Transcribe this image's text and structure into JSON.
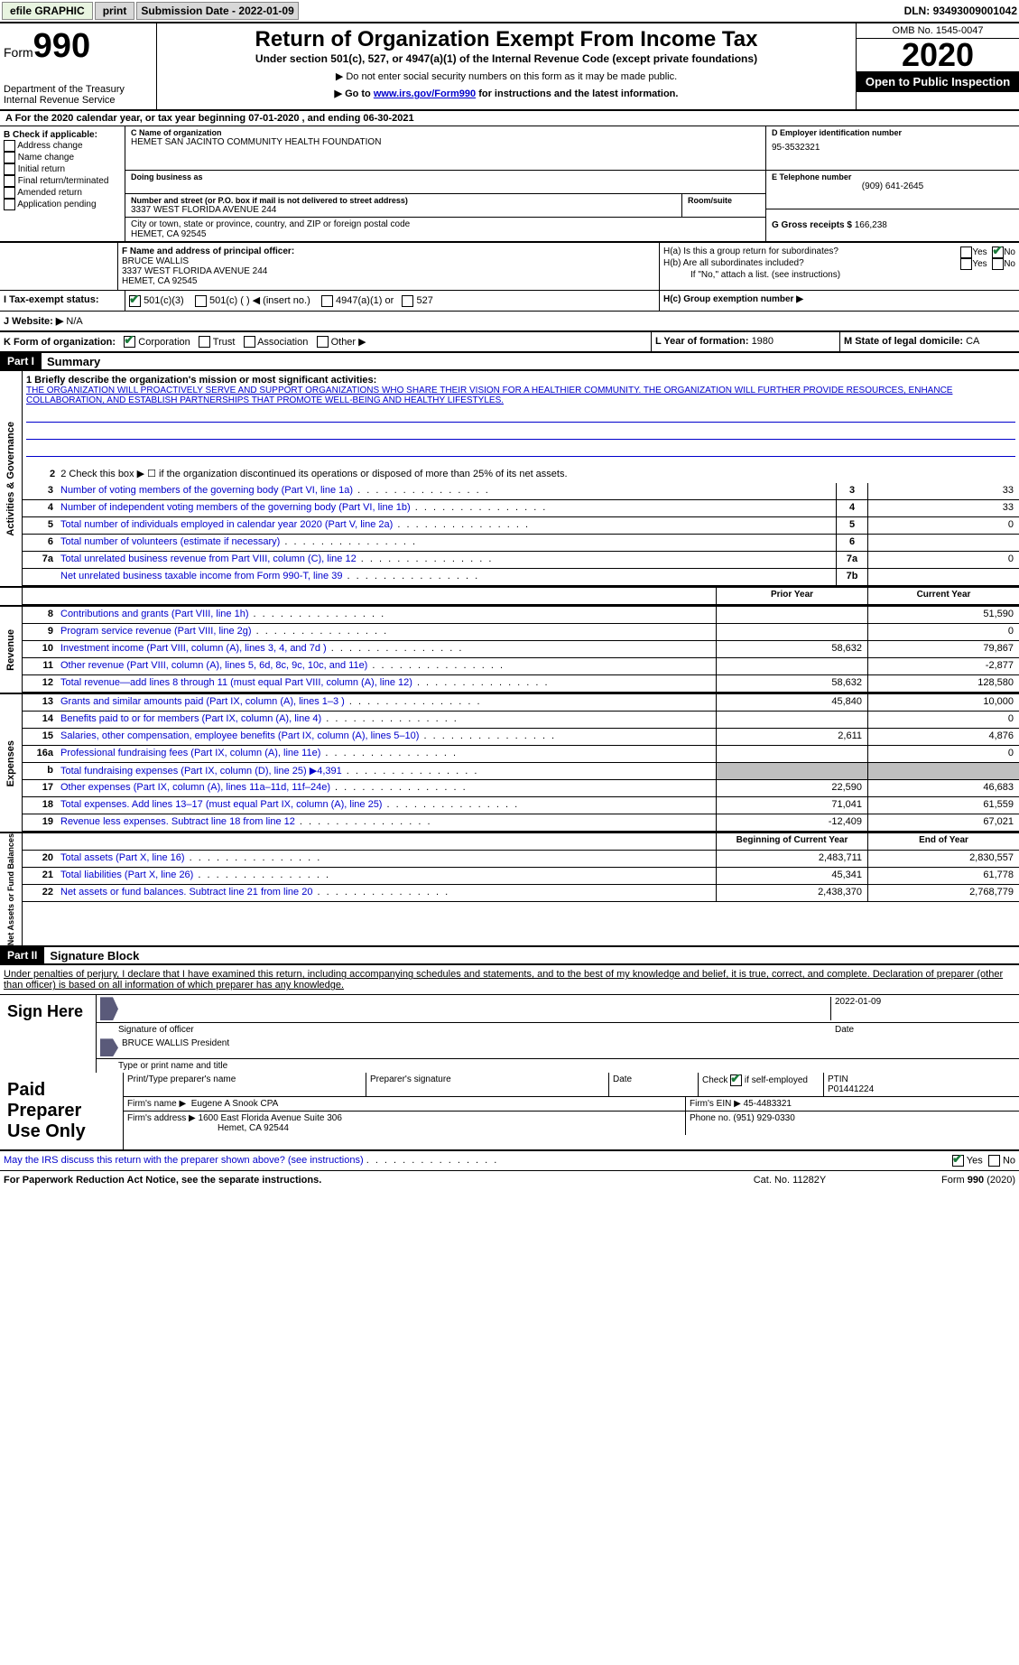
{
  "topbar": {
    "efile": "efile GRAPHIC",
    "print": "print",
    "sub_label": "Submission Date - ",
    "sub_date": "2022-01-09",
    "dln_label": "DLN: ",
    "dln": "93493009001042"
  },
  "header": {
    "form_word": "Form",
    "form_num": "990",
    "dept1": "Department of the Treasury",
    "dept2": "Internal Revenue Service",
    "title": "Return of Organization Exempt From Income Tax",
    "subtitle": "Under section 501(c), 527, or 4947(a)(1) of the Internal Revenue Code (except private foundations)",
    "note1": "▶ Do not enter social security numbers on this form as it may be made public.",
    "note2_pre": "▶ Go to ",
    "note2_link": "www.irs.gov/Form990",
    "note2_post": " for instructions and the latest information.",
    "omb": "OMB No. 1545-0047",
    "year": "2020",
    "inspection": "Open to Public Inspection"
  },
  "section_a": {
    "text": "A For the 2020 calendar year, or tax year beginning 07-01-2020    , and ending 06-30-2021"
  },
  "box_b": {
    "title": "B Check if applicable:",
    "items": [
      "Address change",
      "Name change",
      "Initial return",
      "Final return/terminated",
      "Amended return",
      "Application pending"
    ]
  },
  "box_c": {
    "name_label": "C Name of organization",
    "name": "HEMET SAN JACINTO COMMUNITY HEALTH FOUNDATION",
    "dba_label": "Doing business as",
    "addr_label": "Number and street (or P.O. box if mail is not delivered to street address)",
    "addr": "3337 WEST FLORIDA AVENUE 244",
    "room_label": "Room/suite",
    "city_label": "City or town, state or province, country, and ZIP or foreign postal code",
    "city": "HEMET, CA  92545"
  },
  "box_d": {
    "label": "D Employer identification number",
    "value": "95-3532321"
  },
  "box_e": {
    "label": "E Telephone number",
    "value": "(909) 641-2645"
  },
  "box_g": {
    "label": "G Gross receipts $ ",
    "value": "166,238"
  },
  "box_f": {
    "label": "F  Name and address of principal officer:",
    "name": "BRUCE WALLIS",
    "addr1": "3337 WEST FLORIDA AVENUE 244",
    "addr2": "HEMET, CA  92545"
  },
  "box_h": {
    "ha": "H(a)  Is this a group return for subordinates?",
    "hb": "H(b)  Are all subordinates included?",
    "hb_note": "If \"No,\" attach a list. (see instructions)",
    "hc": "H(c)  Group exemption number ▶",
    "yes": "Yes",
    "no": "No"
  },
  "box_i": {
    "label": "I    Tax-exempt status:",
    "opts": [
      "501(c)(3)",
      "501(c) (  ) ◀ (insert no.)",
      "4947(a)(1) or",
      "527"
    ]
  },
  "box_j": {
    "label": "J   Website: ▶",
    "value": "N/A"
  },
  "box_k": {
    "label": "K Form of organization:",
    "opts": [
      "Corporation",
      "Trust",
      "Association",
      "Other ▶"
    ]
  },
  "box_l": {
    "label": "L Year of formation: ",
    "value": "1980"
  },
  "box_m": {
    "label": "M State of legal domicile: ",
    "value": "CA"
  },
  "part1": {
    "header": "Part I",
    "title": "Summary",
    "line1_label": "1  Briefly describe the organization's mission or most significant activities:",
    "line1_text": "THE ORGANIZATION WILL PROACTIVELY SERVE AND SUPPORT ORGANIZATIONS WHO SHARE THEIR VISION FOR A HEALTHIER COMMUNITY. THE ORGANIZATION WILL FURTHER PROVIDE RESOURCES, ENHANCE COLLABORATION, AND ESTABLISH PARTNERSHIPS THAT PROMOTE WELL-BEING AND HEALTHY LIFESTYLES.",
    "line2": "2   Check this box ▶ ☐ if the organization discontinued its operations or disposed of more than 25% of its net assets.",
    "vtab1": "Activities & Governance",
    "lines_ag": [
      {
        "n": "3",
        "t": "Number of voting members of the governing body (Part VI, line 1a)",
        "box": "3",
        "v": "33"
      },
      {
        "n": "4",
        "t": "Number of independent voting members of the governing body (Part VI, line 1b)",
        "box": "4",
        "v": "33"
      },
      {
        "n": "5",
        "t": "Total number of individuals employed in calendar year 2020 (Part V, line 2a)",
        "box": "5",
        "v": "0"
      },
      {
        "n": "6",
        "t": "Total number of volunteers (estimate if necessary)",
        "box": "6",
        "v": ""
      },
      {
        "n": "7a",
        "t": "Total unrelated business revenue from Part VIII, column (C), line 12",
        "box": "7a",
        "v": "0"
      },
      {
        "n": "",
        "t": "Net unrelated business taxable income from Form 990-T, line 39",
        "box": "7b",
        "v": ""
      }
    ],
    "col_prior": "Prior Year",
    "col_current": "Current Year",
    "vtab2": "Revenue",
    "lines_rev": [
      {
        "n": "8",
        "t": "Contributions and grants (Part VIII, line 1h)",
        "p": "",
        "c": "51,590"
      },
      {
        "n": "9",
        "t": "Program service revenue (Part VIII, line 2g)",
        "p": "",
        "c": "0"
      },
      {
        "n": "10",
        "t": "Investment income (Part VIII, column (A), lines 3, 4, and 7d )",
        "p": "58,632",
        "c": "79,867"
      },
      {
        "n": "11",
        "t": "Other revenue (Part VIII, column (A), lines 5, 6d, 8c, 9c, 10c, and 11e)",
        "p": "",
        "c": "-2,877"
      },
      {
        "n": "12",
        "t": "Total revenue—add lines 8 through 11 (must equal Part VIII, column (A), line 12)",
        "p": "58,632",
        "c": "128,580"
      }
    ],
    "vtab3": "Expenses",
    "lines_exp": [
      {
        "n": "13",
        "t": "Grants and similar amounts paid (Part IX, column (A), lines 1–3 )",
        "p": "45,840",
        "c": "10,000"
      },
      {
        "n": "14",
        "t": "Benefits paid to or for members (Part IX, column (A), line 4)",
        "p": "",
        "c": "0"
      },
      {
        "n": "15",
        "t": "Salaries, other compensation, employee benefits (Part IX, column (A), lines 5–10)",
        "p": "2,611",
        "c": "4,876"
      },
      {
        "n": "16a",
        "t": "Professional fundraising fees (Part IX, column (A), line 11e)",
        "p": "",
        "c": "0"
      },
      {
        "n": "b",
        "t": "Total fundraising expenses (Part IX, column (D), line 25) ▶4,391",
        "p": "grey",
        "c": "grey"
      },
      {
        "n": "17",
        "t": "Other expenses (Part IX, column (A), lines 11a–11d, 11f–24e)",
        "p": "22,590",
        "c": "46,683"
      },
      {
        "n": "18",
        "t": "Total expenses. Add lines 13–17 (must equal Part IX, column (A), line 25)",
        "p": "71,041",
        "c": "61,559"
      },
      {
        "n": "19",
        "t": "Revenue less expenses. Subtract line 18 from line 12",
        "p": "-12,409",
        "c": "67,021"
      }
    ],
    "vtab4": "Net Assets or Fund Balances",
    "col_begin": "Beginning of Current Year",
    "col_end": "End of Year",
    "lines_na": [
      {
        "n": "20",
        "t": "Total assets (Part X, line 16)",
        "p": "2,483,711",
        "c": "2,830,557"
      },
      {
        "n": "21",
        "t": "Total liabilities (Part X, line 26)",
        "p": "45,341",
        "c": "61,778"
      },
      {
        "n": "22",
        "t": "Net assets or fund balances. Subtract line 21 from line 20",
        "p": "2,438,370",
        "c": "2,768,779"
      }
    ]
  },
  "part2": {
    "header": "Part II",
    "title": "Signature Block",
    "decl": "Under penalties of perjury, I declare that I have examined this return, including accompanying schedules and statements, and to the best of my knowledge and belief, it is true, correct, and complete. Declaration of preparer (other than officer) is based on all information of which preparer has any knowledge.",
    "sign_here": "Sign Here",
    "sig_officer": "Signature of officer",
    "sig_date": "2022-01-09",
    "date_label": "Date",
    "officer_name": "BRUCE WALLIS President",
    "name_label": "Type or print name and title"
  },
  "paid": {
    "title": "Paid Preparer Use Only",
    "h1": "Print/Type preparer's name",
    "h2": "Preparer's signature",
    "h3": "Date",
    "h4_check": "Check",
    "h4_if": "if self-employed",
    "h5": "PTIN",
    "ptin": "P01441224",
    "firm_name_label": "Firm's name      ▶",
    "firm_name": "Eugene A Snook CPA",
    "firm_ein_label": "Firm's EIN ▶",
    "firm_ein": "45-4483321",
    "firm_addr_label": "Firm's address ▶",
    "firm_addr1": "1600 East Florida Avenue Suite 306",
    "firm_addr2": "Hemet, CA  92544",
    "phone_label": "Phone no. ",
    "phone": "(951) 929-0330"
  },
  "footer": {
    "discuss": "May the IRS discuss this return with the preparer shown above? (see instructions)",
    "yes": "Yes",
    "no": "No",
    "pra": "For Paperwork Reduction Act Notice, see the separate instructions.",
    "cat": "Cat. No. 11282Y",
    "form": "Form 990 (2020)"
  }
}
